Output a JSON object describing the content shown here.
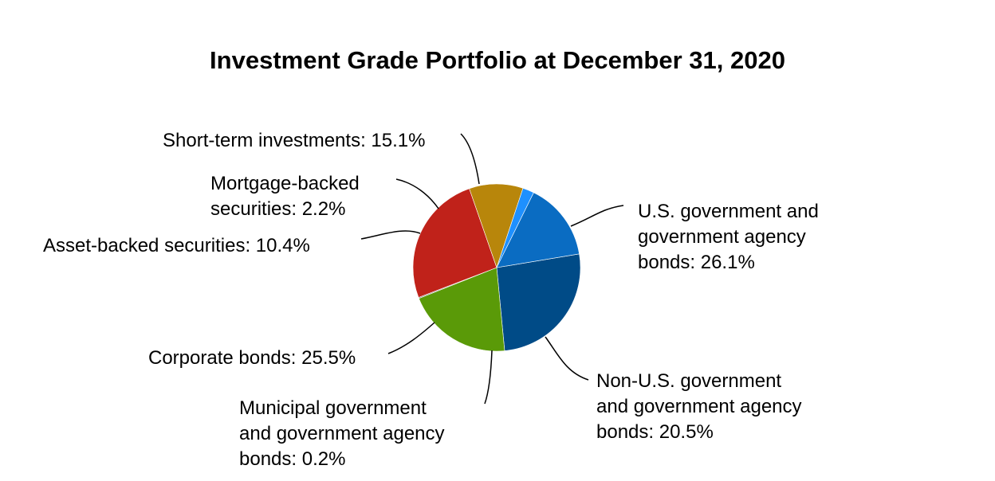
{
  "chart_data": {
    "type": "pie",
    "title": "Investment Grade Portfolio at December 31, 2020",
    "slices": [
      {
        "label": [
          "U.S. government and",
          "government agency",
          "bonds: 26.1%"
        ],
        "value": 26.1,
        "color": "#004b87"
      },
      {
        "label": [
          "Non-U.S. government",
          "and government agency",
          "bonds: 20.5%"
        ],
        "value": 20.5,
        "color": "#5a9a08"
      },
      {
        "label": [
          "Municipal government",
          "and government agency",
          "bonds: 0.2%"
        ],
        "value": 0.2,
        "color": "#888888"
      },
      {
        "label": [
          "Corporate bonds: 25.5%"
        ],
        "value": 25.5,
        "color": "#c0221a"
      },
      {
        "label": [
          "Asset-backed securities: 10.4%"
        ],
        "value": 10.4,
        "color": "#b8860b"
      },
      {
        "label": [
          "Mortgage-backed",
          "securities: 2.2%"
        ],
        "value": 2.2,
        "color": "#1e90ff"
      },
      {
        "label": [
          "Short-term investments: 15.1%"
        ],
        "value": 15.1,
        "color": "#0a6cc2"
      }
    ]
  }
}
